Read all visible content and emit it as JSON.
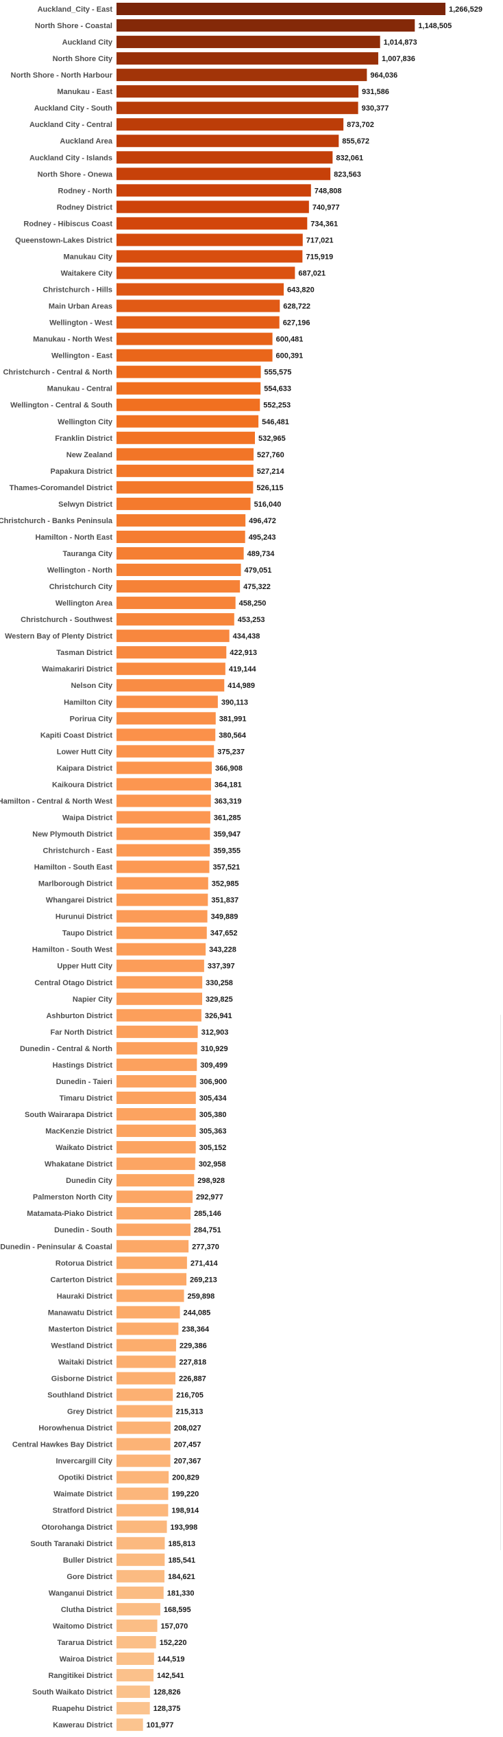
{
  "chart_data": {
    "type": "bar",
    "orientation": "horizontal",
    "title": "",
    "xlabel": "",
    "ylabel": "",
    "grid": false,
    "legend": "none",
    "xlim": [
      0,
      1266529
    ],
    "colors": {
      "darkest": "#7a2508",
      "dark": "#c9410a",
      "mid": "#f07a22",
      "light": "#fda55d",
      "lightest": "#fbc48f"
    },
    "categories": [
      "Auckland_City - East",
      "North Shore - Coastal",
      "Auckland City",
      "North Shore City",
      "North Shore - North Harbour",
      "Manukau - East",
      "Auckland City - South",
      "Auckland City - Central",
      "Auckland Area",
      "Auckland City - Islands",
      "North Shore - Onewa",
      "Rodney - North",
      "Rodney District",
      "Rodney - Hibiscus Coast",
      "Queenstown-Lakes District",
      "Manukau City",
      "Waitakere City",
      "Christchurch - Hills",
      "Main Urban Areas",
      "Wellington - West",
      "Manukau - North West",
      "Wellington - East",
      "Christchurch - Central & North",
      "Manukau - Central",
      "Wellington - Central & South",
      "Wellington City",
      "Franklin District",
      "New Zealand",
      "Papakura District",
      "Thames-Coromandel District",
      "Selwyn District",
      "Christchurch - Banks Peninsula",
      "Hamilton - North East",
      "Tauranga City",
      "Wellington - North",
      "Christchurch City",
      "Wellington Area",
      "Christchurch - Southwest",
      "Western Bay of Plenty District",
      "Tasman District",
      "Waimakariri District",
      "Nelson City",
      "Hamilton City",
      "Porirua City",
      "Kapiti Coast District",
      "Lower Hutt City",
      "Kaipara District",
      "Kaikoura District",
      "Hamilton - Central & North West",
      "Waipa District",
      "New Plymouth District",
      "Christchurch - East",
      "Hamilton - South East",
      "Marlborough District",
      "Whangarei District",
      "Hurunui District",
      "Taupo District",
      "Hamilton - South West",
      "Upper Hutt City",
      "Central Otago District",
      "Napier City",
      "Ashburton District",
      "Far North District",
      "Dunedin - Central & North",
      "Hastings District",
      "Dunedin - Taieri",
      "Timaru District",
      "South Wairarapa District",
      "MacKenzie District",
      "Waikato District",
      "Whakatane District",
      "Dunedin City",
      "Palmerston North City",
      "Matamata-Piako District",
      "Dunedin - South",
      "Dunedin - Peninsular & Coastal",
      "Rotorua District",
      "Carterton District",
      "Hauraki District",
      "Manawatu District",
      "Masterton District",
      "Westland District",
      "Waitaki District",
      "Gisborne District",
      "Southland District",
      "Grey District",
      "Horowhenua District",
      "Central Hawkes Bay District",
      "Invercargill City",
      "Opotiki District",
      "Waimate District",
      "Stratford District",
      "Otorohanga District",
      "South Taranaki District",
      "Buller District",
      "Gore District",
      "Wanganui District",
      "Clutha District",
      "Waitomo District",
      "Tararua District",
      "Wairoa District",
      "Rangitikei District",
      "South Waikato District",
      "Ruapehu District",
      "Kawerau District"
    ],
    "values": [
      1266529,
      1148505,
      1014873,
      1007836,
      964036,
      931586,
      930377,
      873702,
      855672,
      832061,
      823563,
      748808,
      740977,
      734361,
      717021,
      715919,
      687021,
      643820,
      628722,
      627196,
      600481,
      600391,
      555575,
      554633,
      552253,
      546481,
      532965,
      527760,
      527214,
      526115,
      516040,
      496472,
      495243,
      489734,
      479051,
      475322,
      458250,
      453253,
      434438,
      422913,
      419144,
      414989,
      390113,
      381991,
      380564,
      375237,
      366908,
      364181,
      363319,
      361285,
      359947,
      359355,
      357521,
      352985,
      351837,
      349889,
      347652,
      343228,
      337397,
      330258,
      329825,
      326941,
      312903,
      310929,
      309499,
      306900,
      305434,
      305380,
      305363,
      305152,
      302958,
      298928,
      292977,
      285146,
      284751,
      277370,
      271414,
      269213,
      259898,
      244085,
      238364,
      229386,
      227818,
      226887,
      216705,
      215313,
      208027,
      207457,
      207367,
      200829,
      199220,
      198914,
      193998,
      185813,
      185541,
      184621,
      181330,
      168595,
      157070,
      152220,
      144519,
      142541,
      128826,
      128375,
      101977
    ],
    "value_labels": [
      "1,266,529",
      "1,148,505",
      "1,014,873",
      "1,007,836",
      "964,036",
      "931,586",
      "930,377",
      "873,702",
      "855,672",
      "832,061",
      "823,563",
      "748,808",
      "740,977",
      "734,361",
      "717,021",
      "715,919",
      "687,021",
      "643,820",
      "628,722",
      "627,196",
      "600,481",
      "600,391",
      "555,575",
      "554,633",
      "552,253",
      "546,481",
      "532,965",
      "527,760",
      "527,214",
      "526,115",
      "516,040",
      "496,472",
      "495,243",
      "489,734",
      "479,051",
      "475,322",
      "458,250",
      "453,253",
      "434,438",
      "422,913",
      "419,144",
      "414,989",
      "390,113",
      "381,991",
      "380,564",
      "375,237",
      "366,908",
      "364,181",
      "363,319",
      "361,285",
      "359,947",
      "359,355",
      "357,521",
      "352,985",
      "351,837",
      "349,889",
      "347,652",
      "343,228",
      "337,397",
      "330,258",
      "329,825",
      "326,941",
      "312,903",
      "310,929",
      "309,499",
      "306,900",
      "305,434",
      "305,380",
      "305,363",
      "305,152",
      "302,958",
      "298,928",
      "292,977",
      "285,146",
      "284,751",
      "277,370",
      "271,414",
      "269,213",
      "259,898",
      "244,085",
      "238,364",
      "229,386",
      "227,818",
      "226,887",
      "216,705",
      "215,313",
      "208,027",
      "207,457",
      "207,367",
      "200,829",
      "199,220",
      "198,914",
      "193,998",
      "185,813",
      "185,541",
      "184,621",
      "181,330",
      "168,595",
      "157,070",
      "152,220",
      "144,519",
      "142,541",
      "128,826",
      "128,375",
      "101,977"
    ]
  }
}
